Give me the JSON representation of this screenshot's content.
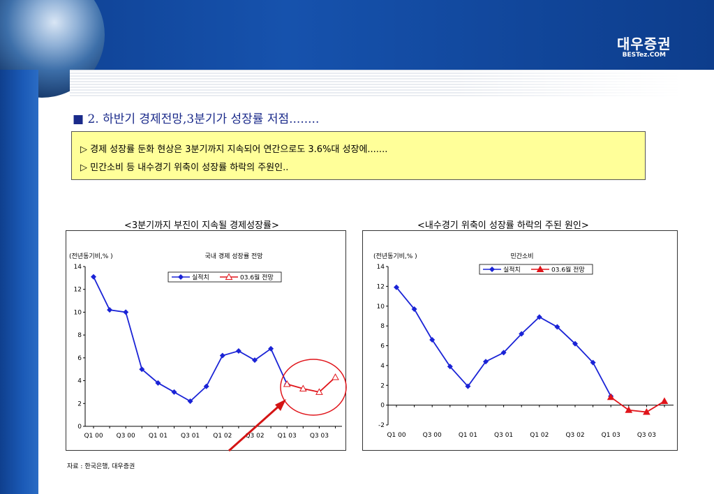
{
  "header": {
    "logo_text": "대우증권",
    "logo_sub": "BESTez.COM"
  },
  "heading": {
    "bullet": "■",
    "text": "2. 하반기 경제전망,3분기가 성장률 저점........"
  },
  "callout": {
    "lines": [
      "▷ 경제 성장률 둔화 현상은 3분기까지 지속되어 연간으로도 3.6%대 성장에.......",
      "▷ 민간소비 등 내수경기 위축이 성장률 하락의 주원인.."
    ],
    "background": "#ffff99"
  },
  "source": "자료 : 한국은행, 대우증권",
  "colors": {
    "actual": "#1a23d6",
    "forecast": "#e0141a",
    "highlight_circle": "#e0141a",
    "arrow": "#d41414"
  },
  "chart_data": [
    {
      "type": "line",
      "outer_title": "<3분기까지 부진이 지속될 경제성장률>",
      "title": "국내 경제 성장률 전망",
      "ylabel": "(전년동기비,% )",
      "ylim": [
        0,
        14
      ],
      "yticks": [
        0,
        2,
        4,
        6,
        8,
        10,
        12,
        14
      ],
      "x": [
        "Q1 00",
        "Q2 00",
        "Q3 00",
        "Q4 00",
        "Q1 01",
        "Q2 01",
        "Q3 01",
        "Q4 01",
        "Q1 02",
        "Q2 02",
        "Q3 02",
        "Q4 02",
        "Q1 03",
        "Q2 03",
        "Q3 03",
        "Q4 03"
      ],
      "xtick_labels": [
        "Q1 00",
        "Q3 00",
        "Q1 01",
        "Q3 01",
        "Q1 02",
        "Q3 02",
        "Q1 03",
        "Q3 03"
      ],
      "series": [
        {
          "name": "실적치",
          "marker": "diamond",
          "values": [
            13.1,
            10.2,
            10.0,
            5.0,
            3.8,
            3.0,
            2.2,
            3.5,
            6.2,
            6.6,
            5.8,
            6.8,
            3.7,
            null,
            null,
            null
          ]
        },
        {
          "name": "03.6월 전망",
          "marker": "triangle-open",
          "values": [
            null,
            null,
            null,
            null,
            null,
            null,
            null,
            null,
            null,
            null,
            null,
            null,
            3.7,
            3.3,
            3.0,
            4.3
          ]
        }
      ],
      "grid": false,
      "legend": "top-center"
    },
    {
      "type": "line",
      "outer_title": "<내수경기 위축이 성장률 하락의 주된 원인>",
      "title": "민간소비",
      "ylabel": "(전년동기비,% )",
      "ylim": [
        -2,
        14
      ],
      "yticks": [
        -2,
        0,
        2,
        4,
        6,
        8,
        10,
        12,
        14
      ],
      "x": [
        "Q1 00",
        "Q2 00",
        "Q3 00",
        "Q4 00",
        "Q1 01",
        "Q2 01",
        "Q3 01",
        "Q4 01",
        "Q1 02",
        "Q2 02",
        "Q3 02",
        "Q4 02",
        "Q1 03",
        "Q2 03",
        "Q3 03",
        "Q4 03"
      ],
      "xtick_labels": [
        "Q1 00",
        "Q3 00",
        "Q1 01",
        "Q3 01",
        "Q1 02",
        "Q3 02",
        "Q1 03",
        "Q3 03"
      ],
      "series": [
        {
          "name": "실적치",
          "marker": "diamond",
          "values": [
            11.9,
            9.7,
            6.6,
            3.9,
            1.9,
            4.4,
            5.3,
            7.2,
            8.9,
            7.9,
            6.2,
            4.3,
            0.9,
            null,
            null,
            null
          ]
        },
        {
          "name": "03.6월 전망",
          "marker": "triangle-filled",
          "values": [
            null,
            null,
            null,
            null,
            null,
            null,
            null,
            null,
            null,
            null,
            null,
            null,
            0.8,
            -0.5,
            -0.7,
            0.4
          ]
        }
      ],
      "grid": false,
      "legend": "top-center"
    }
  ]
}
